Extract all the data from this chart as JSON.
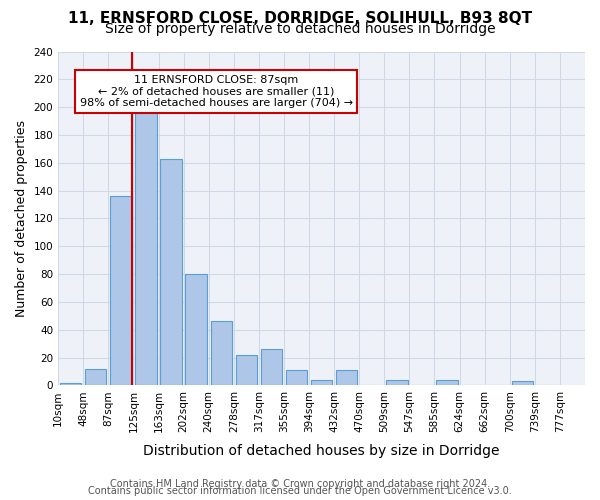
{
  "title_line1": "11, ERNSFORD CLOSE, DORRIDGE, SOLIHULL, B93 8QT",
  "title_line2": "Size of property relative to detached houses in Dorridge",
  "xlabel": "Distribution of detached houses by size in Dorridge",
  "ylabel": "Number of detached properties",
  "bar_values": [
    2,
    12,
    136,
    197,
    163,
    80,
    46,
    22,
    26,
    11,
    4,
    11,
    0,
    4,
    0,
    4,
    0,
    0,
    3,
    0
  ],
  "bin_labels": [
    "10sqm",
    "48sqm",
    "87sqm",
    "125sqm",
    "163sqm",
    "202sqm",
    "240sqm",
    "278sqm",
    "317sqm",
    "355sqm",
    "394sqm",
    "432sqm",
    "470sqm",
    "509sqm",
    "547sqm",
    "585sqm",
    "624sqm",
    "662sqm",
    "700sqm",
    "739sqm"
  ],
  "last_label": "777sqm",
  "bar_color": "#aec6e8",
  "bar_edge_color": "#5a9fd4",
  "vline_bar_index": 2,
  "vline_color": "#cc0000",
  "annotation_text": "11 ERNSFORD CLOSE: 87sqm\n← 2% of detached houses are smaller (11)\n98% of semi-detached houses are larger (704) →",
  "annotation_box_color": "#ffffff",
  "annotation_box_edge_color": "#cc0000",
  "ylim": [
    0,
    240
  ],
  "yticks": [
    0,
    20,
    40,
    60,
    80,
    100,
    120,
    140,
    160,
    180,
    200,
    220,
    240
  ],
  "grid_color": "#d0d8e8",
  "background_color": "#eef2f8",
  "footer_line1": "Contains HM Land Registry data © Crown copyright and database right 2024.",
  "footer_line2": "Contains public sector information licensed under the Open Government Licence v3.0.",
  "title_fontsize": 11,
  "subtitle_fontsize": 10,
  "axis_label_fontsize": 9,
  "tick_fontsize": 7.5,
  "footer_fontsize": 7
}
